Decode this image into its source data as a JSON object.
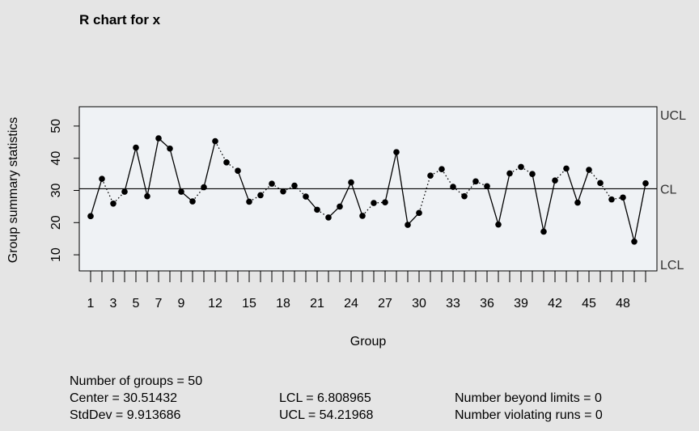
{
  "chart_data": {
    "type": "line",
    "title": "R chart for x",
    "xlabel": "Group",
    "ylabel": "Group summary statistics",
    "xlim": [
      0,
      51
    ],
    "ylim": [
      5,
      56
    ],
    "y_ticks": [
      10,
      20,
      30,
      40,
      50
    ],
    "x_tick_labels": [
      1,
      3,
      5,
      7,
      9,
      12,
      15,
      18,
      21,
      24,
      27,
      30,
      33,
      36,
      39,
      42,
      45,
      48
    ],
    "x_tick_marks": [
      1,
      2,
      3,
      4,
      5,
      6,
      7,
      8,
      9,
      10,
      11,
      12,
      13,
      14,
      15,
      16,
      17,
      18,
      19,
      20,
      21,
      22,
      23,
      24,
      25,
      26,
      27,
      28,
      29,
      30,
      31,
      32,
      33,
      34,
      35,
      36,
      37,
      38,
      39,
      40,
      41,
      42,
      43,
      44,
      45,
      46,
      47,
      48,
      49,
      50
    ],
    "x": [
      1,
      2,
      3,
      4,
      5,
      6,
      7,
      8,
      9,
      10,
      11,
      12,
      13,
      14,
      15,
      16,
      17,
      18,
      19,
      20,
      21,
      22,
      23,
      24,
      25,
      26,
      27,
      28,
      29,
      30,
      31,
      32,
      33,
      34,
      35,
      36,
      37,
      38,
      39,
      40,
      41,
      42,
      43,
      44,
      45,
      46,
      47,
      48,
      49,
      50
    ],
    "values": [
      22.0,
      33.6,
      25.9,
      29.6,
      43.3,
      28.2,
      46.2,
      43.0,
      29.6,
      26.6,
      31.0,
      45.3,
      38.7,
      36.1,
      26.5,
      28.5,
      32.1,
      29.7,
      31.5,
      28.1,
      24.0,
      21.6,
      25.0,
      32.5,
      22.1,
      26.1,
      26.3,
      41.9,
      19.3,
      23.0,
      34.6,
      36.6,
      31.1,
      28.2,
      32.8,
      31.3,
      19.4,
      35.3,
      37.3,
      35.1,
      17.2,
      33.1,
      36.8,
      26.2,
      36.4,
      32.3,
      27.2,
      27.8,
      14.1,
      32.2
    ],
    "line_style_by_segment": [
      "solid",
      "dotted",
      "dotted",
      "solid",
      "solid",
      "solid",
      "solid",
      "solid",
      "solid",
      "dotted",
      "solid",
      "dotted",
      "dotted",
      "solid",
      "dotted",
      "dotted",
      "dotted",
      "dotted",
      "dotted",
      "solid",
      "dotted",
      "solid",
      "solid",
      "solid",
      "dotted",
      "dotted",
      "solid",
      "solid",
      "solid",
      "dotted",
      "dotted",
      "dotted",
      "dotted",
      "dotted",
      "dotted",
      "solid",
      "solid",
      "dotted",
      "dotted",
      "solid",
      "solid",
      "dotted",
      "solid",
      "solid",
      "dotted",
      "dotted",
      "dotted",
      "solid",
      "solid"
    ],
    "center_line": 30.51432,
    "limit_labels": {
      "ucl": "UCL",
      "cl": "CL",
      "lcl": "LCL"
    },
    "colors": {
      "background": "#e5e5e5",
      "plot_background": "#eff2f5",
      "line": "#000000",
      "points": "#000000"
    },
    "grid": false
  },
  "stats": {
    "groups": "Number of groups = 50",
    "center": "Center = 30.51432",
    "stddev": "StdDev = 9.913686",
    "lcl": "LCL = 6.808965",
    "ucl": "UCL = 54.21968",
    "beyond": "Number beyond limits = 0",
    "violating": "Number violating runs = 0"
  }
}
